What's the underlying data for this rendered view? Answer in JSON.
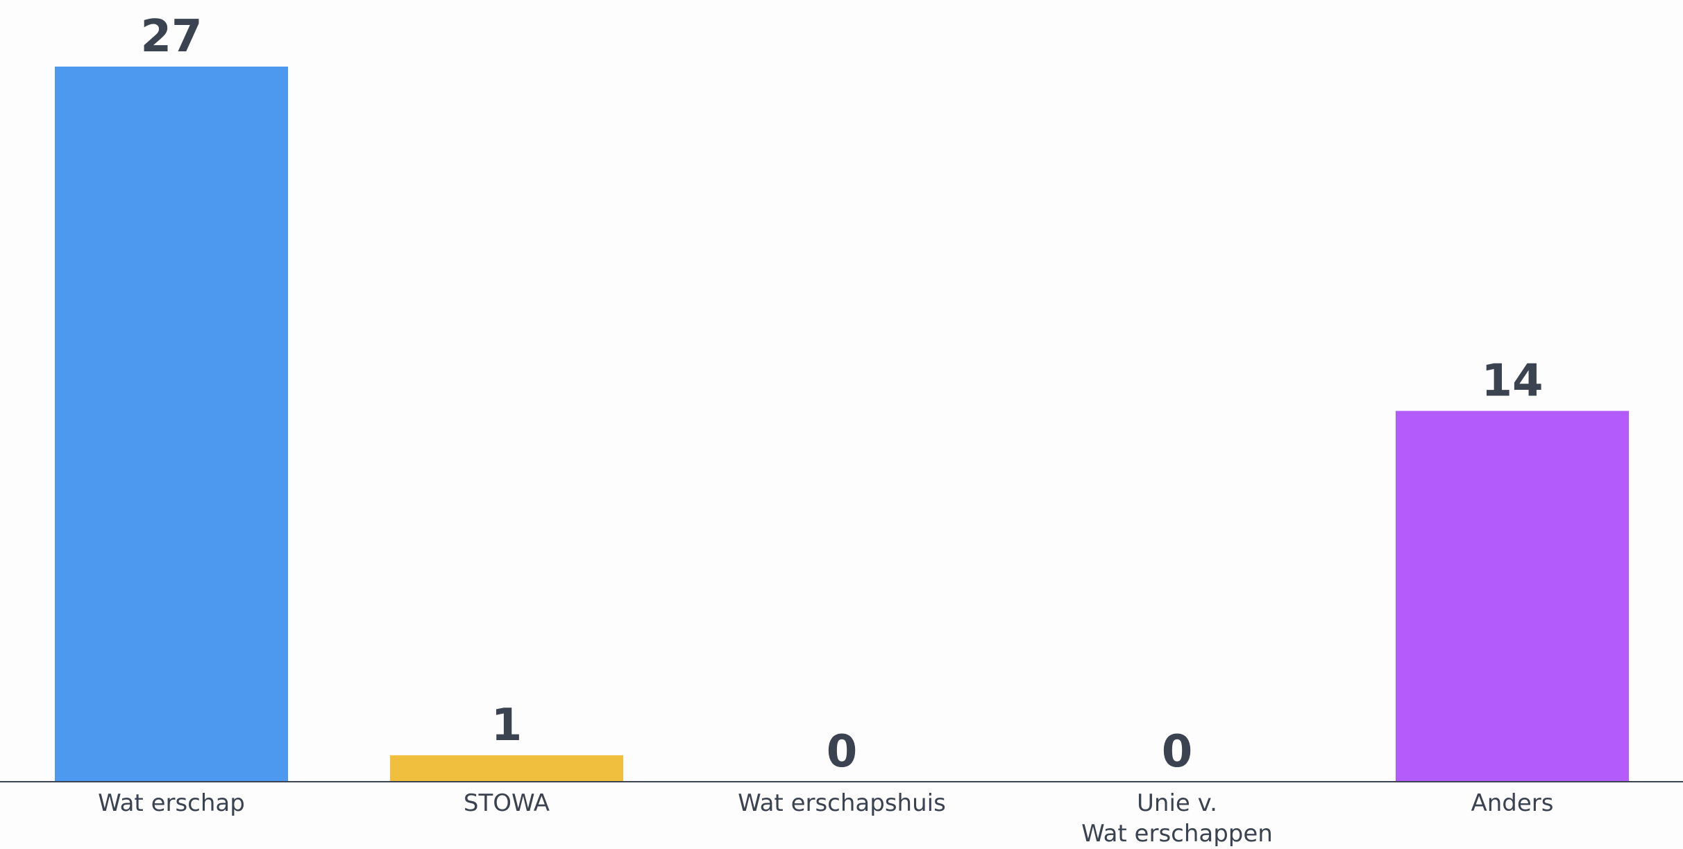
{
  "chart_data": {
    "type": "bar",
    "title": "",
    "xlabel": "",
    "ylabel": "",
    "categories": [
      "Waterschap",
      "STOWA",
      "Waterschapshuis",
      "Unie v. Waterschappen",
      "Anders"
    ],
    "category_label_lines": [
      [
        "Wat erschap"
      ],
      [
        "STOWA"
      ],
      [
        "Wat erschapshuis"
      ],
      [
        "Unie v.",
        "Wat erschappen"
      ],
      [
        "Anders"
      ]
    ],
    "values": [
      27,
      1,
      0,
      0,
      14
    ],
    "value_labels": [
      "27",
      "1",
      "0",
      "0",
      "14"
    ],
    "colors": [
      "#4d99f0",
      "#f0bf3e",
      "#9aa0a6",
      "#9aa0a6",
      "#b35cfb"
    ],
    "ylim": [
      0,
      27
    ],
    "grid": false,
    "legend": "none"
  },
  "style": {
    "axis_color": "#3b4250",
    "label_color": "#3b4250",
    "value_color": "#3b4250"
  }
}
